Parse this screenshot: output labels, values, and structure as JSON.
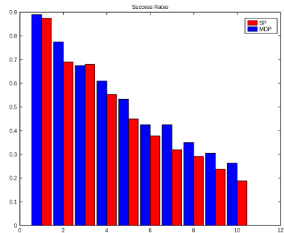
{
  "chart_data": {
    "type": "bar",
    "title": "Success Rates",
    "xlabel": "",
    "ylabel": "",
    "x": [
      1,
      2,
      3,
      4,
      5,
      6,
      7,
      8,
      9,
      10
    ],
    "series": [
      {
        "name": "SP",
        "color": "#ff0000",
        "values": [
          0.875,
          0.69,
          0.68,
          0.553,
          0.45,
          0.378,
          0.32,
          0.292,
          0.238,
          0.188
        ]
      },
      {
        "name": "MDP",
        "color": "#0000ff",
        "values": [
          0.89,
          0.775,
          0.675,
          0.61,
          0.533,
          0.425,
          0.425,
          0.35,
          0.305,
          0.263
        ]
      }
    ],
    "series_draw_order": [
      "MDP",
      "SP"
    ],
    "xlim": [
      0,
      12
    ],
    "ylim": [
      0,
      0.9
    ],
    "xticks": [
      0,
      2,
      4,
      6,
      8,
      10,
      12
    ],
    "yticks": [
      0,
      0.1,
      0.2,
      0.3,
      0.4,
      0.5,
      0.6,
      0.7,
      0.8,
      0.9
    ],
    "grid": false,
    "legend": "top-right",
    "bar_width_fraction": 0.45
  }
}
